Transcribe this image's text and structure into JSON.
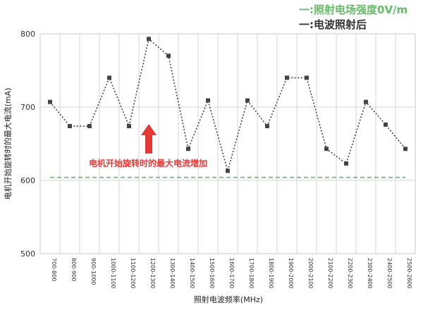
{
  "chart_data": {
    "type": "line",
    "xlabel": "照射电波频率(MHz)",
    "ylabel": "电机开始旋转时的最大电流(mA)",
    "ylim": [
      500,
      800
    ],
    "yticks": [
      500,
      600,
      700,
      800
    ],
    "grid": true,
    "legend_position": "top-right",
    "categories": [
      "700-800",
      "800-900",
      "900-1000",
      "1000-1100",
      "1100-1200",
      "1200-1300",
      "1300-1400",
      "1400-1500",
      "1500-1600",
      "1600-1700",
      "1700-1800",
      "1800-1900",
      "1900-2000",
      "2000-2100",
      "2100-2200",
      "2200-2300",
      "2300-2400",
      "2400-2500",
      "2500-2600"
    ],
    "series": [
      {
        "name": "电波照射后",
        "color": "#444444",
        "style": "dotted-with-square-markers",
        "values": [
          707,
          674,
          674,
          740,
          674,
          793,
          770,
          643,
          709,
          613,
          709,
          674,
          740,
          740,
          643,
          623,
          707,
          676,
          643
        ]
      },
      {
        "name": "照射电场强度0V/m",
        "color": "#66bb6a",
        "style": "dashed",
        "values": [
          604,
          604,
          604,
          604,
          604,
          604,
          604,
          604,
          604,
          604,
          604,
          604,
          604,
          604,
          604,
          604,
          604,
          604,
          604
        ]
      }
    ],
    "legend": [
      {
        "marker": "一",
        "label": ":照射电场强度0V/m",
        "color": "#66bb6a"
      },
      {
        "marker": "一",
        "label": ":电波照射后",
        "color": "#333333"
      }
    ],
    "annotation": {
      "text": "电机开始旋转时的最大电流增加",
      "color": "#e53935",
      "arrow": "up",
      "anchor_category": "1200-1300"
    }
  }
}
